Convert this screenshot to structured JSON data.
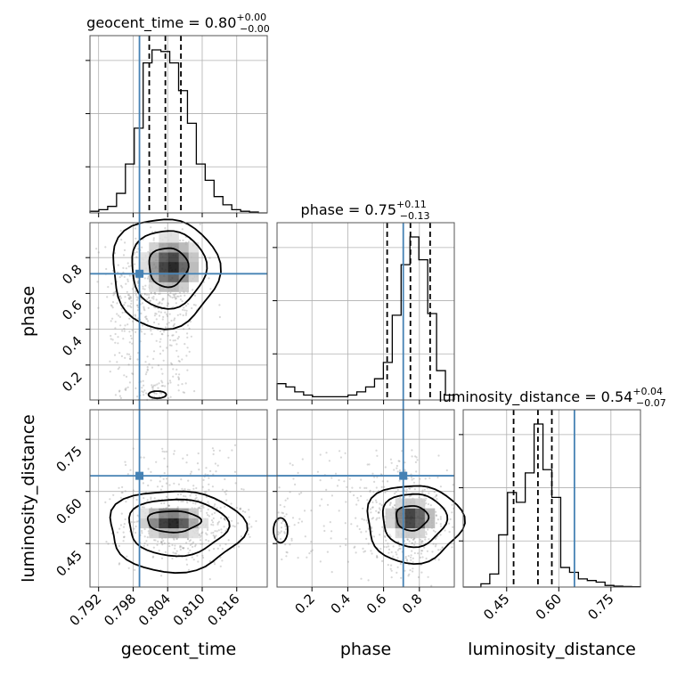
{
  "chart_data": {
    "type": "corner",
    "parameters": [
      {
        "name": "geocent_time",
        "range": [
          0.7905,
          0.8213
        ],
        "ticks": [
          "0.792",
          "0.798",
          "0.804",
          "0.810",
          "0.816"
        ],
        "title": {
          "label": "geocent_time",
          "median": "0.80",
          "plus": "+0.00",
          "minus": "−0.00"
        }
      },
      {
        "name": "phase",
        "range": [
          0.005,
          0.995
        ],
        "ticks": [
          "0.2",
          "0.4",
          "0.6",
          "0.8"
        ],
        "title": {
          "label": "phase",
          "median": "0.75",
          "plus": "+0.11",
          "minus": "−0.13"
        }
      },
      {
        "name": "luminosity_distance",
        "range": [
          0.325,
          0.835
        ],
        "ticks": [
          "0.45",
          "0.60",
          "0.75"
        ],
        "title": {
          "label": "luminosity_distance",
          "median": "0.54",
          "plus": "+0.04",
          "minus": "−0.07"
        }
      }
    ],
    "truths": [
      0.7991,
      0.71,
      0.645
    ],
    "quantiles": [
      [
        0.8008,
        0.8036,
        0.8063
      ],
      [
        0.62,
        0.75,
        0.86
      ],
      [
        0.47,
        0.54,
        0.58
      ]
    ],
    "histograms": [
      {
        "edges_from": 0.7905,
        "edges_to": 0.8213,
        "counts": [
          1,
          2,
          4,
          12,
          30,
          52,
          92,
          100,
          99,
          92,
          75,
          55,
          30,
          20,
          10,
          5,
          2,
          1,
          0.5,
          0
        ]
      },
      {
        "edges_from": 0.005,
        "edges_to": 0.995,
        "counts": [
          10,
          8,
          5,
          3,
          2,
          2,
          2,
          2,
          3,
          5,
          8,
          13,
          23,
          52,
          83,
          100,
          86,
          53,
          18,
          3
        ]
      },
      {
        "edges_from": 0.325,
        "edges_to": 0.835,
        "counts": [
          0,
          0,
          2,
          8,
          32,
          58,
          52,
          70,
          100,
          72,
          55,
          12,
          9,
          5,
          4,
          3,
          1,
          0.5,
          0.3,
          0.2
        ]
      }
    ],
    "grid": true,
    "truth_color": "#4682b4",
    "line_color": "#000000"
  }
}
